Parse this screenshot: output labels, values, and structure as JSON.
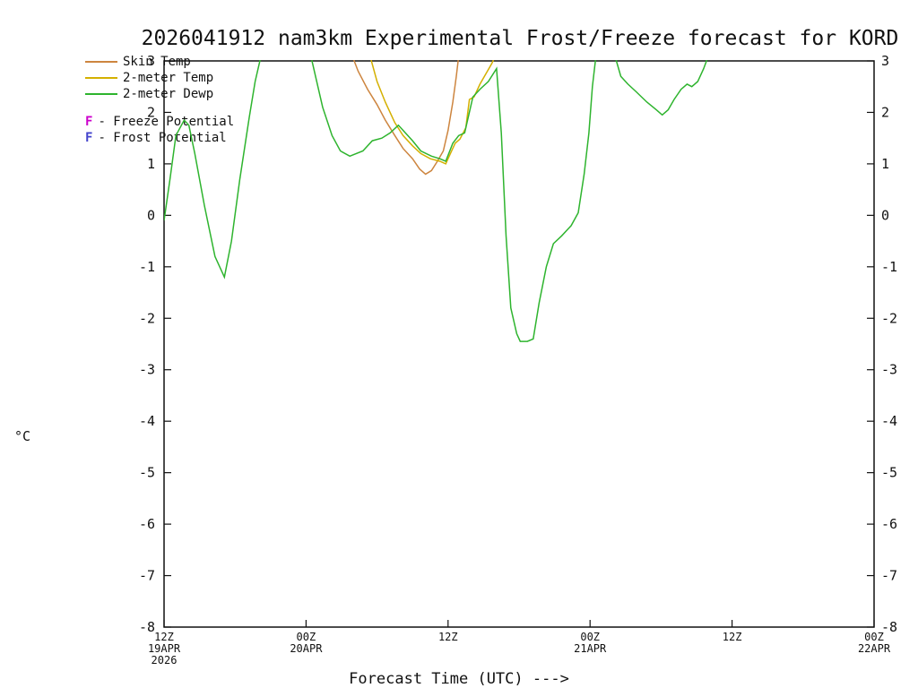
{
  "chart_data": {
    "type": "line",
    "title": "2026041912 nam3km Experimental Frost/Freeze forecast for KORD",
    "xlabel": "Forecast Time (UTC) --->",
    "ylabel": "°C",
    "ylim": [
      -8,
      3
    ],
    "xlim_hours": [
      0,
      60
    ],
    "grid": false,
    "legend_position": "top-left",
    "y_ticks": [
      3,
      2,
      1,
      0,
      -1,
      -2,
      -3,
      -4,
      -5,
      -6,
      -7,
      -8
    ],
    "x_ticks": [
      {
        "hour": 0,
        "label": "12Z",
        "sub": "19APR",
        "sub2": "2026"
      },
      {
        "hour": 12,
        "label": "00Z",
        "sub": "20APR",
        "sub2": ""
      },
      {
        "hour": 24,
        "label": "12Z",
        "sub": "",
        "sub2": ""
      },
      {
        "hour": 36,
        "label": "00Z",
        "sub": "21APR",
        "sub2": ""
      },
      {
        "hour": 48,
        "label": "12Z",
        "sub": "",
        "sub2": ""
      },
      {
        "hour": 60,
        "label": "00Z",
        "sub": "22APR",
        "sub2": ""
      }
    ],
    "series": [
      {
        "name": "Skin Temp",
        "color": "#cd853f",
        "points": [
          [
            15.9,
            3.1
          ],
          [
            16.4,
            2.8
          ],
          [
            17.2,
            2.45
          ],
          [
            18.0,
            2.15
          ],
          [
            18.7,
            1.85
          ],
          [
            19.5,
            1.55
          ],
          [
            20.2,
            1.3
          ],
          [
            21.0,
            1.1
          ],
          [
            21.6,
            0.9
          ],
          [
            22.1,
            0.8
          ],
          [
            22.6,
            0.87
          ],
          [
            23.1,
            1.05
          ],
          [
            23.6,
            1.25
          ],
          [
            24.0,
            1.65
          ],
          [
            24.4,
            2.2
          ],
          [
            24.7,
            2.7
          ],
          [
            24.9,
            3.1
          ]
        ]
      },
      {
        "name": "2-meter Temp",
        "color": "#d4b000",
        "points": [
          [
            17.4,
            3.1
          ],
          [
            18.0,
            2.6
          ],
          [
            18.7,
            2.2
          ],
          [
            19.5,
            1.8
          ],
          [
            20.2,
            1.55
          ],
          [
            21.0,
            1.35
          ],
          [
            21.7,
            1.2
          ],
          [
            22.5,
            1.1
          ],
          [
            23.3,
            1.05
          ],
          [
            23.8,
            1.0
          ],
          [
            24.2,
            1.2
          ],
          [
            24.6,
            1.4
          ],
          [
            25.0,
            1.48
          ],
          [
            25.5,
            1.7
          ],
          [
            25.8,
            2.25
          ],
          [
            26.2,
            2.3
          ],
          [
            26.7,
            2.55
          ],
          [
            27.2,
            2.75
          ],
          [
            27.7,
            2.95
          ],
          [
            28.0,
            3.1
          ]
        ]
      },
      {
        "name": "2-meter Dewp",
        "color": "#2eb42e",
        "points": [
          [
            0,
            -0.1
          ],
          [
            0.5,
            0.7
          ],
          [
            1,
            1.55
          ],
          [
            1.7,
            1.85
          ],
          [
            2.1,
            1.75
          ],
          [
            2.6,
            1.2
          ],
          [
            3.4,
            0.2
          ],
          [
            4.3,
            -0.8
          ],
          [
            5.1,
            -1.2
          ],
          [
            5.7,
            -0.5
          ],
          [
            6.4,
            0.7
          ],
          [
            7.2,
            1.9
          ],
          [
            7.7,
            2.6
          ],
          [
            8.2,
            3.1
          ],
          null,
          [
            12.4,
            3.1
          ],
          [
            13.4,
            2.1
          ],
          [
            14.2,
            1.55
          ],
          [
            14.9,
            1.25
          ],
          [
            15.7,
            1.15
          ],
          [
            16.8,
            1.25
          ],
          [
            17.6,
            1.45
          ],
          [
            18.4,
            1.5
          ],
          [
            19.1,
            1.6
          ],
          [
            19.8,
            1.75
          ],
          [
            21.0,
            1.45
          ],
          [
            21.7,
            1.25
          ],
          [
            22.6,
            1.15
          ],
          [
            23.3,
            1.1
          ],
          [
            23.8,
            1.05
          ],
          [
            24.4,
            1.4
          ],
          [
            24.9,
            1.55
          ],
          [
            25.4,
            1.6
          ],
          [
            26.1,
            2.3
          ],
          [
            26.7,
            2.45
          ],
          [
            27.4,
            2.6
          ],
          [
            28.1,
            2.85
          ],
          [
            28.5,
            1.6
          ],
          [
            28.9,
            -0.4
          ],
          [
            29.3,
            -1.8
          ],
          [
            29.8,
            -2.3
          ],
          [
            30.1,
            -2.45
          ],
          [
            30.7,
            -2.45
          ],
          [
            31.2,
            -2.4
          ],
          [
            31.7,
            -1.7
          ],
          [
            32.3,
            -1.0
          ],
          [
            32.9,
            -0.55
          ],
          [
            33.6,
            -0.4
          ],
          [
            34.4,
            -0.2
          ],
          [
            35.0,
            0.05
          ],
          [
            35.5,
            0.8
          ],
          [
            35.9,
            1.6
          ],
          [
            36.2,
            2.5
          ],
          [
            36.5,
            3.1
          ],
          null,
          [
            38.1,
            3.1
          ],
          [
            38.6,
            2.7
          ],
          [
            39.2,
            2.55
          ],
          [
            39.9,
            2.4
          ],
          [
            40.8,
            2.2
          ],
          [
            41.6,
            2.05
          ],
          [
            42.1,
            1.95
          ],
          [
            42.6,
            2.05
          ],
          [
            43.1,
            2.25
          ],
          [
            43.7,
            2.45
          ],
          [
            44.2,
            2.55
          ],
          [
            44.6,
            2.5
          ],
          [
            45.1,
            2.6
          ],
          [
            45.6,
            2.85
          ],
          [
            46.0,
            3.1
          ]
        ]
      }
    ],
    "flags": [
      {
        "letter": "F",
        "color": "#cc00cc",
        "label": "Freeze Potential"
      },
      {
        "letter": "F",
        "color": "#4444cc",
        "label": "Frost Potential"
      }
    ],
    "axis_color": "#111111"
  }
}
